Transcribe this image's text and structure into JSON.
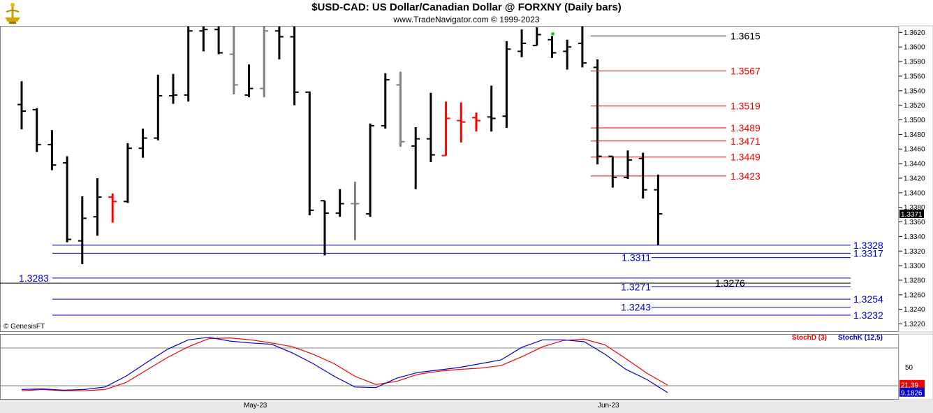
{
  "header": {
    "title": "$USD-CAD:  US Dollar/Canadian Dollar @ FORXNY  (Daily bars)",
    "subtitle": "www.TradeNavigator.com © 1999-2023",
    "copyright": "© GenesisFT"
  },
  "chart_data": [
    {
      "type": "ohlc",
      "y_axis": {
        "ylim": [
          1.321,
          1.3628
        ],
        "ticks": [
          "1.3620",
          "1.3600",
          "1.3580",
          "1.3560",
          "1.3540",
          "1.3520",
          "1.3500",
          "1.3480",
          "1.3460",
          "1.3440",
          "1.3420",
          "1.3400",
          "1.3380",
          "1.3360",
          "1.3340",
          "1.3320",
          "1.3300",
          "1.3280",
          "1.3260",
          "1.3240",
          "1.3220"
        ],
        "last_price_label": "1.3371"
      },
      "x_axis": {
        "labels": [
          "May-23",
          "Jun-23"
        ]
      },
      "colors": {
        "up": "#000000",
        "down": "#000000",
        "highlight_red": "#ff0000",
        "highlight_gray": "#808080",
        "marker_green": "#00c000"
      },
      "bars": [
        {
          "h": 1.3553,
          "l": 1.3487,
          "o": 1.3521,
          "c": 1.3512,
          "color": "black"
        },
        {
          "h": 1.3516,
          "l": 1.3456,
          "o": 1.3514,
          "c": 1.3466,
          "color": "black"
        },
        {
          "h": 1.3486,
          "l": 1.3431,
          "o": 1.3466,
          "c": 1.3438,
          "color": "black"
        },
        {
          "h": 1.345,
          "l": 1.3332,
          "o": 1.3441,
          "c": 1.3336,
          "color": "black"
        },
        {
          "h": 1.3395,
          "l": 1.3302,
          "o": 1.3334,
          "c": 1.3365,
          "color": "black"
        },
        {
          "h": 1.342,
          "l": 1.3341,
          "o": 1.3367,
          "c": 1.3394,
          "color": "black"
        },
        {
          "h": 1.3399,
          "l": 1.3359,
          "o": 1.3394,
          "c": 1.3388,
          "color": "red"
        },
        {
          "h": 1.3468,
          "l": 1.3386,
          "o": 1.3388,
          "c": 1.3461,
          "color": "black"
        },
        {
          "h": 1.3488,
          "l": 1.3448,
          "o": 1.3461,
          "c": 1.3475,
          "color": "black"
        },
        {
          "h": 1.3562,
          "l": 1.3472,
          "o": 1.3475,
          "c": 1.3533,
          "color": "black"
        },
        {
          "h": 1.3563,
          "l": 1.3522,
          "o": 1.3533,
          "c": 1.3534,
          "color": "black"
        },
        {
          "h": 1.3628,
          "l": 1.3525,
          "o": 1.3534,
          "c": 1.3622,
          "color": "black"
        },
        {
          "h": 1.3628,
          "l": 1.3594,
          "o": 1.3622,
          "c": 1.3624,
          "color": "black"
        },
        {
          "h": 1.3628,
          "l": 1.359,
          "o": 1.3624,
          "c": 1.3592,
          "color": "black"
        },
        {
          "h": 1.3628,
          "l": 1.3535,
          "o": 1.359,
          "c": 1.3548,
          "color": "gray"
        },
        {
          "h": 1.3576,
          "l": 1.3531,
          "o": 1.3534,
          "c": 1.3543,
          "color": "black"
        },
        {
          "h": 1.3628,
          "l": 1.3531,
          "o": 1.3543,
          "c": 1.3622,
          "color": "gray"
        },
        {
          "h": 1.3628,
          "l": 1.3583,
          "o": 1.3622,
          "c": 1.3614,
          "color": "black"
        },
        {
          "h": 1.3628,
          "l": 1.352,
          "o": 1.3614,
          "c": 1.3538,
          "color": "black"
        },
        {
          "h": 1.3539,
          "l": 1.3369,
          "o": 1.3538,
          "c": 1.3376,
          "color": "black"
        },
        {
          "h": 1.3389,
          "l": 1.3314,
          "o": 1.3389,
          "c": 1.3372,
          "color": "black"
        },
        {
          "h": 1.3405,
          "l": 1.3367,
          "o": 1.3372,
          "c": 1.3385,
          "color": "black"
        },
        {
          "h": 1.3415,
          "l": 1.3335,
          "o": 1.3385,
          "c": 1.3385,
          "color": "gray"
        },
        {
          "h": 1.3495,
          "l": 1.3367,
          "o": 1.3371,
          "c": 1.3492,
          "color": "black"
        },
        {
          "h": 1.3564,
          "l": 1.3488,
          "o": 1.3492,
          "c": 1.3555,
          "color": "black"
        },
        {
          "h": 1.3566,
          "l": 1.3463,
          "o": 1.3548,
          "c": 1.347,
          "color": "gray"
        },
        {
          "h": 1.349,
          "l": 1.3405,
          "o": 1.3464,
          "c": 1.3474,
          "color": "black"
        },
        {
          "h": 1.3537,
          "l": 1.3442,
          "o": 1.3474,
          "c": 1.3452,
          "color": "black"
        },
        {
          "h": 1.3525,
          "l": 1.3451,
          "o": 1.3451,
          "c": 1.3502,
          "color": "red"
        },
        {
          "h": 1.3524,
          "l": 1.3469,
          "o": 1.3499,
          "c": 1.3497,
          "color": "red"
        },
        {
          "h": 1.351,
          "l": 1.3484,
          "o": 1.3503,
          "c": 1.3499,
          "color": "red"
        },
        {
          "h": 1.3547,
          "l": 1.3484,
          "o": 1.3504,
          "c": 1.3502,
          "color": "black"
        },
        {
          "h": 1.3608,
          "l": 1.3489,
          "o": 1.3505,
          "c": 1.3597,
          "color": "black"
        },
        {
          "h": 1.3624,
          "l": 1.3586,
          "o": 1.3594,
          "c": 1.3605,
          "color": "black"
        },
        {
          "h": 1.3627,
          "l": 1.3602,
          "o": 1.3602,
          "c": 1.3617,
          "color": "black"
        },
        {
          "h": 1.3615,
          "l": 1.3585,
          "o": 1.361,
          "c": 1.3592,
          "color": "black"
        },
        {
          "h": 1.361,
          "l": 1.3569,
          "o": 1.3594,
          "c": 1.36,
          "color": "black"
        },
        {
          "h": 1.3628,
          "l": 1.3572,
          "o": 1.3605,
          "c": 1.3578,
          "color": "black"
        },
        {
          "h": 1.3583,
          "l": 1.3439,
          "o": 1.3572,
          "c": 1.345,
          "color": "black"
        },
        {
          "h": 1.345,
          "l": 1.3407,
          "o": 1.345,
          "c": 1.3421,
          "color": "black"
        },
        {
          "h": 1.3458,
          "l": 1.3419,
          "o": 1.3421,
          "c": 1.3445,
          "color": "black"
        },
        {
          "h": 1.3455,
          "l": 1.3392,
          "o": 1.3447,
          "c": 1.3404,
          "color": "black"
        },
        {
          "h": 1.3425,
          "l": 1.3328,
          "o": 1.3404,
          "c": 1.3371,
          "color": "black"
        }
      ],
      "green_marker_price": 1.3618,
      "levels": [
        {
          "value": 1.3615,
          "label": "1.3615",
          "color": "#000000",
          "label_side": "right"
        },
        {
          "value": 1.3567,
          "label": "1.3567",
          "color": "#ee0000",
          "label_side": "right"
        },
        {
          "value": 1.3519,
          "label": "1.3519",
          "color": "#ee0000",
          "label_side": "right"
        },
        {
          "value": 1.3489,
          "label": "1.3489",
          "color": "#ee0000",
          "label_side": "right"
        },
        {
          "value": 1.3471,
          "label": "1.3471",
          "color": "#ee0000",
          "label_side": "right"
        },
        {
          "value": 1.3449,
          "label": "1.3449",
          "color": "#ee0000",
          "label_side": "right"
        },
        {
          "value": 1.3423,
          "label": "1.3423",
          "color": "#ee0000",
          "label_side": "right"
        },
        {
          "value": 1.3328,
          "label": "1.3328",
          "color": "#0000cc",
          "label_side": "far-right"
        },
        {
          "value": 1.3317,
          "label": "1.3317",
          "color": "#0000cc",
          "label_side": "far-right"
        },
        {
          "value": 1.3311,
          "label": "1.3311",
          "color": "#0000cc",
          "label_side": "mid"
        },
        {
          "value": 1.3283,
          "label": "1.3283",
          "color": "#0000cc",
          "label_side": "left"
        },
        {
          "value": 1.3276,
          "label": "1.3276",
          "color": "#000000",
          "label_side": "mid-right"
        },
        {
          "value": 1.3271,
          "label": "1.3271",
          "color": "#0000cc",
          "label_side": "mid"
        },
        {
          "value": 1.3254,
          "label": "1.3254",
          "color": "#0000cc",
          "label_side": "far-right"
        },
        {
          "value": 1.3243,
          "label": "1.3243",
          "color": "#0000cc",
          "label_side": "mid"
        },
        {
          "value": 1.3232,
          "label": "1.3232",
          "color": "#0000cc",
          "label_side": "far-right"
        }
      ]
    },
    {
      "type": "line",
      "title": "",
      "legend": [
        "StochD (3)",
        "StochK (12,5)"
      ],
      "ylim": [
        0,
        100
      ],
      "y_ticks": [
        "50"
      ],
      "reference_lines": [
        80,
        20
      ],
      "last_values": {
        "StochD (3)": "21.39",
        "StochK (12,5)": "9.1826"
      },
      "series": [
        {
          "name": "StochD (3)",
          "color": "#ee0000",
          "values": [
            12,
            14,
            12,
            12,
            14,
            25,
            45,
            65,
            82,
            95,
            96,
            93,
            88,
            82,
            70,
            55,
            35,
            22,
            27,
            38,
            43,
            46,
            48,
            52,
            66,
            82,
            92,
            94,
            85,
            63,
            40,
            21
          ]
        },
        {
          "name": "StochK (12,5)",
          "color": "#0000cc",
          "values": [
            14,
            15,
            13,
            14,
            18,
            35,
            57,
            78,
            93,
            97,
            91,
            88,
            86,
            72,
            55,
            35,
            18,
            17,
            32,
            41,
            45,
            49,
            55,
            61,
            81,
            93,
            93,
            90,
            70,
            46,
            30,
            9
          ]
        }
      ]
    }
  ]
}
